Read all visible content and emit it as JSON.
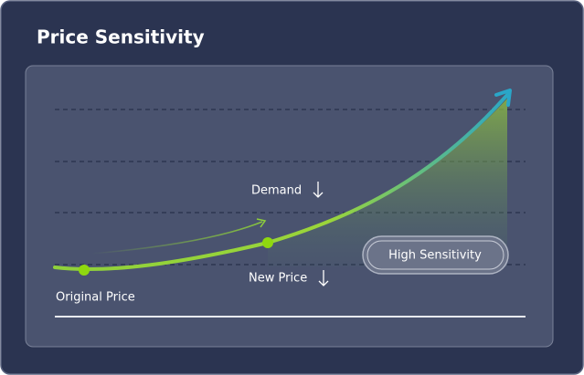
{
  "header": {
    "title": "Price Sensitivity"
  },
  "labels": {
    "demand": "Demand",
    "new_price": "New Price",
    "original_price": "Original Price"
  },
  "badge": {
    "label": "High Sensitivity"
  }
}
